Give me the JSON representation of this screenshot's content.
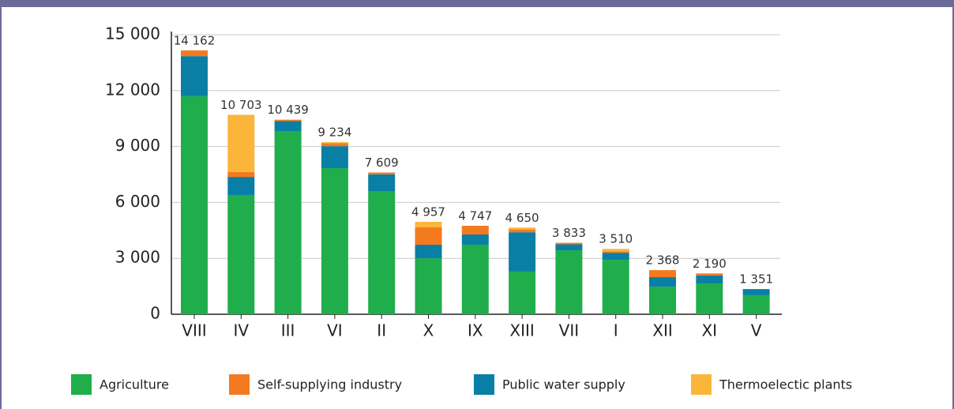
{
  "chart_data": {
    "type": "stacked_bar",
    "categories": [
      "VIII",
      "IV",
      "III",
      "VI",
      "II",
      "X",
      "IX",
      "XIII",
      "VII",
      "I",
      "XII",
      "XI",
      "V"
    ],
    "series": [
      {
        "name": "Agriculture",
        "color": "#1fae4b",
        "values": [
          11700,
          6400,
          9800,
          7840,
          6610,
          3000,
          3730,
          2290,
          3430,
          2920,
          1480,
          1650,
          1020
        ]
      },
      {
        "name": "Public water supply",
        "color": "#0a7fa5",
        "values": [
          2150,
          970,
          560,
          1180,
          900,
          730,
          550,
          2110,
          320,
          380,
          510,
          430,
          331
        ]
      },
      {
        "name": "Self-supplying industry",
        "color": "#f47a20",
        "values": [
          312,
          260,
          79,
          154,
          99,
          930,
          467,
          150,
          83,
          70,
          378,
          110,
          0
        ]
      },
      {
        "name": "Thermoelectic plants",
        "color": "#fbb53b",
        "values": [
          0,
          3073,
          0,
          60,
          0,
          297,
          0,
          100,
          0,
          140,
          0,
          0,
          0
        ]
      }
    ],
    "total_labels": [
      "14 162",
      "10 703",
      "10 439",
      "9 234",
      "7 609",
      "4 957",
      "4 747",
      "4 650",
      "3 833",
      "3 510",
      "2 368",
      "2 190",
      "1 351"
    ],
    "legend_order": [
      0,
      2,
      1,
      3
    ],
    "ylim": [
      0,
      15000
    ],
    "yticks": [
      0,
      {
        "value": 3000,
        "label": "3 000"
      },
      {
        "value": 6000,
        "label": "6 000"
      },
      {
        "value": 9000,
        "label": "9 000"
      },
      {
        "value": 12000,
        "label": "12 000"
      },
      {
        "value": 15000,
        "label": "15 000"
      }
    ],
    "grid": true
  }
}
